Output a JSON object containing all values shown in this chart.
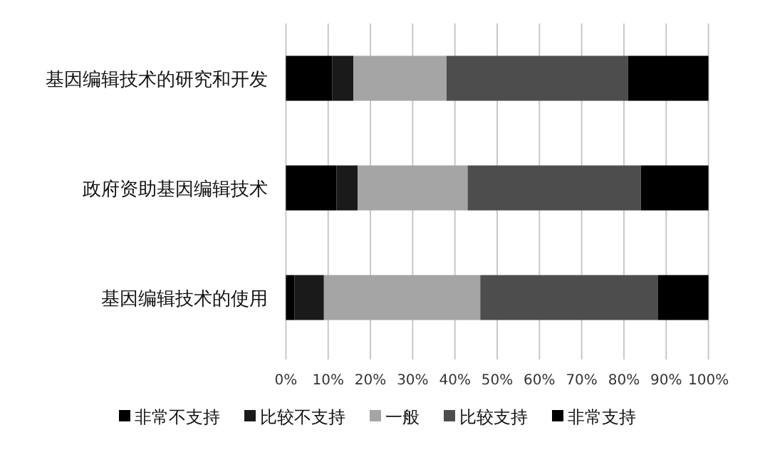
{
  "chart_data": {
    "type": "bar",
    "orientation": "horizontal",
    "stacked": true,
    "categories": [
      "基因编辑技术的研究和开发",
      "政府资助基因编辑技术",
      "基因编辑技术的使用"
    ],
    "series": [
      {
        "name": "非常不支持",
        "color": "#000000",
        "values": [
          11,
          12,
          2
        ]
      },
      {
        "name": "比较不支持",
        "color": "#1a1a1a",
        "values": [
          5,
          5,
          7
        ]
      },
      {
        "name": "一般",
        "color": "#a5a5a5",
        "values": [
          22,
          26,
          37
        ]
      },
      {
        "name": "比较支持",
        "color": "#4d4d4d",
        "values": [
          43,
          41,
          42
        ]
      },
      {
        "name": "非常支持",
        "color": "#000000",
        "values": [
          19,
          16,
          12
        ]
      }
    ],
    "xlim": [
      0,
      100
    ],
    "xticks": [
      {
        "value": 0,
        "label": "0%"
      },
      {
        "value": 10,
        "label": "10%"
      },
      {
        "value": 20,
        "label": "20%"
      },
      {
        "value": 30,
        "label": "30%"
      },
      {
        "value": 40,
        "label": "40%"
      },
      {
        "value": 50,
        "label": "50%"
      },
      {
        "value": 60,
        "label": "60%"
      },
      {
        "value": 70,
        "label": "70%"
      },
      {
        "value": 80,
        "label": "80%"
      },
      {
        "value": 90,
        "label": "90%"
      },
      {
        "value": 100,
        "label": "100%"
      }
    ],
    "grid": "x",
    "legend": "bottom"
  }
}
